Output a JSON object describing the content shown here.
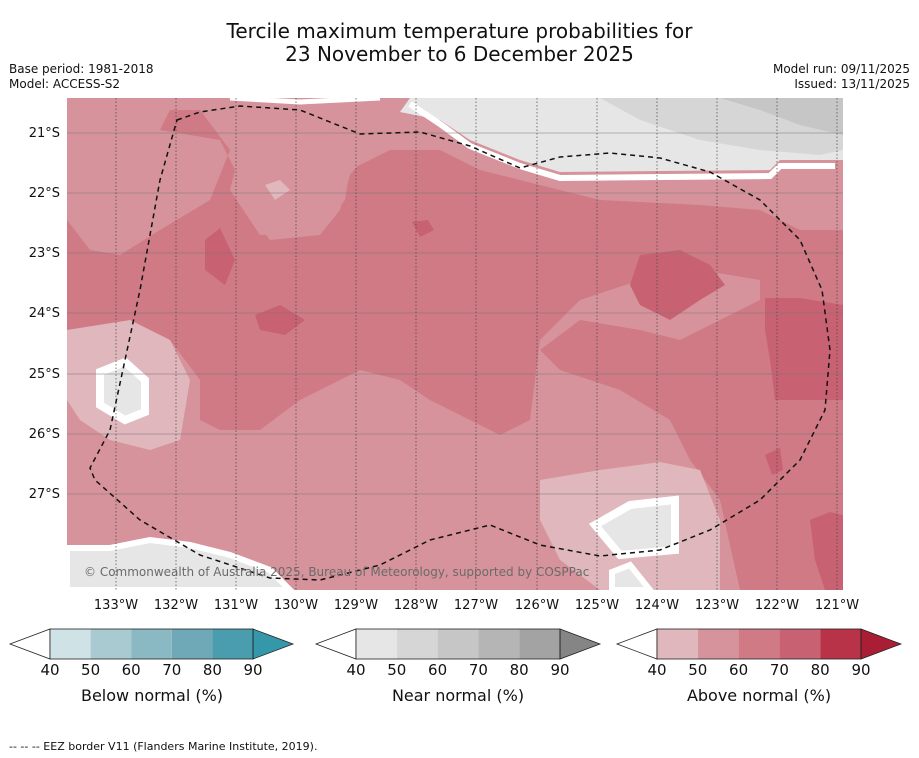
{
  "title_line1": "Tercile maximum temperature probabilities for",
  "title_line2": "23 November to 6 December 2025",
  "base_period": "Base period: 1981-2018",
  "model": "Model: ACCESS-S2",
  "model_run": "Model run: 09/11/2025",
  "issued": "Issued: 13/11/2025",
  "copyright": "© Commonwealth of Australia 2025, Bureau of Meteorology, supported by COSPPac",
  "latitudes": [
    "21°S",
    "22°S",
    "23°S",
    "24°S",
    "25°S",
    "26°S",
    "27°S"
  ],
  "longitudes": [
    "133°W",
    "132°W",
    "131°W",
    "130°W",
    "129°W",
    "128°W",
    "127°W",
    "126°W",
    "125°W",
    "124°W",
    "123°W",
    "122°W",
    "121°W"
  ],
  "colorbars": [
    {
      "label": "Below normal (%)",
      "ticks": [
        "40",
        "50",
        "60",
        "70",
        "80",
        "90"
      ],
      "colors": [
        "#cfe3e7",
        "#a9cad1",
        "#8ab9c4",
        "#6fa9b7",
        "#4a9dae",
        "#3597aa"
      ]
    },
    {
      "label": "Near normal (%)",
      "ticks": [
        "40",
        "50",
        "60",
        "70",
        "80",
        "90"
      ],
      "colors": [
        "#e6e6e6",
        "#d6d6d6",
        "#c6c6c6",
        "#b5b5b5",
        "#a3a3a3",
        "#858585"
      ]
    },
    {
      "label": "Above normal (%)",
      "ticks": [
        "40",
        "50",
        "60",
        "70",
        "80",
        "90"
      ],
      "colors": [
        "#e0b7bd",
        "#d6939b",
        "#cf7a85",
        "#c86272",
        "#b93348",
        "#aa1e35"
      ]
    }
  ],
  "footnote": "--  --  -- EEZ border V11 (Flanders Marine Institute, 2019)."
}
